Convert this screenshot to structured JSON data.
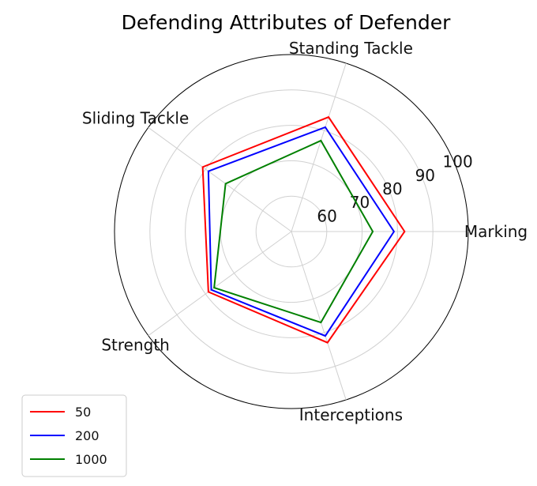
{
  "chart_data": {
    "type": "radar",
    "title": "Defending Attributes of Defender",
    "axes": [
      "Marking",
      "Standing Tackle",
      "Sliding Tackle",
      "Strength",
      "Interceptions"
    ],
    "radial_range": [
      50,
      100
    ],
    "radial_ticks": [
      60,
      70,
      80,
      90,
      100
    ],
    "grid": true,
    "legend_position": "bottom-left",
    "series": [
      {
        "name": "50",
        "color": "#ff0000",
        "values": [
          82,
          84,
          81,
          79,
          83
        ]
      },
      {
        "name": "200",
        "color": "#0000ff",
        "values": [
          79,
          81,
          79,
          78,
          81
        ]
      },
      {
        "name": "1000",
        "color": "#008000",
        "values": [
          73,
          77,
          73,
          77,
          77
        ]
      }
    ]
  }
}
